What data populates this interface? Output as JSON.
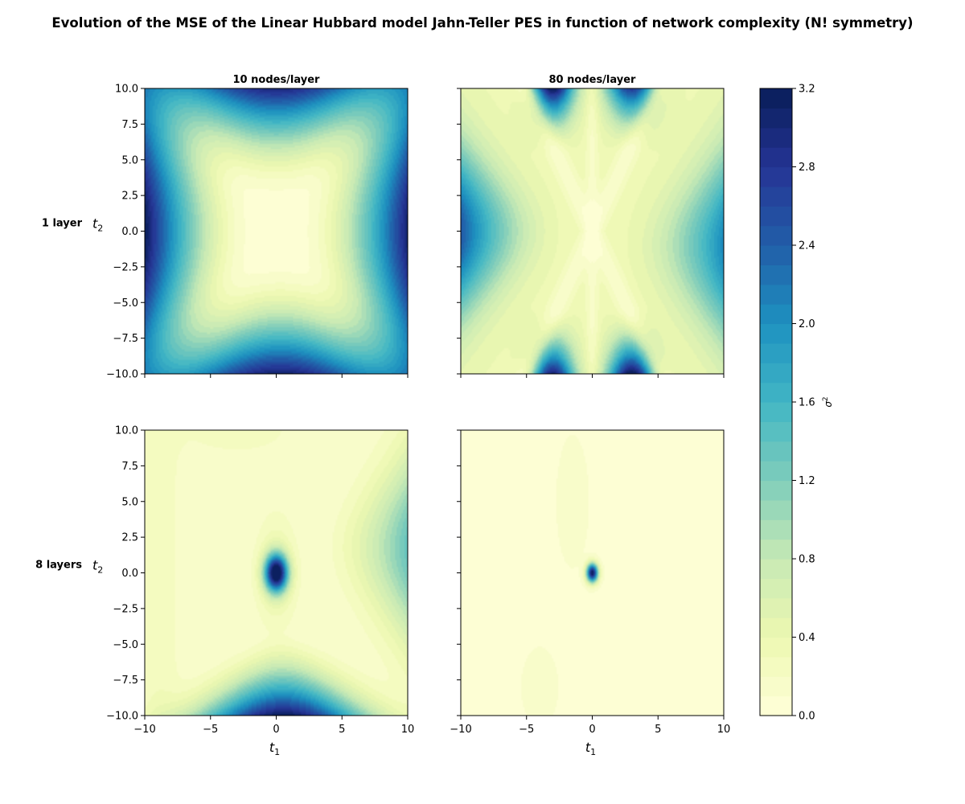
{
  "chart_data": {
    "type": "heatmap",
    "title": "Evolution of the MSE of the Linear Hubbard model Jahn-Teller PES in function of network complexity (N! symmetry)",
    "column_titles": [
      "10 nodes/layer",
      "80 nodes/layer"
    ],
    "row_labels": [
      "1 layer",
      "8 layers"
    ],
    "xlabel": "t",
    "xlabel_sub": "1",
    "ylabel": "t",
    "ylabel_sub": "2",
    "xlim": [
      -10,
      10
    ],
    "ylim": [
      -10,
      10
    ],
    "x_ticks": [
      -10,
      -5,
      0,
      5,
      10
    ],
    "x_tick_labels": [
      "−10",
      "−5",
      "0",
      "5",
      "10"
    ],
    "y_ticks": [
      -10,
      -7.5,
      -5,
      -2.5,
      0,
      2.5,
      5,
      7.5,
      10
    ],
    "y_tick_labels": [
      "−10.0",
      "−7.5",
      "−5.0",
      "−2.5",
      "0.0",
      "2.5",
      "5.0",
      "7.5",
      "10.0"
    ],
    "colorbar": {
      "label": "σ",
      "label_sup": "2",
      "min": 0,
      "max": 3.2,
      "levels": 32,
      "colormap": "YlGnBu",
      "ticks": [
        0,
        0.4,
        0.8,
        1.2,
        1.6,
        2.0,
        2.4,
        2.8,
        3.2
      ],
      "tick_labels": [
        "0.0",
        "0.4",
        "0.8",
        "1.2",
        "1.6",
        "2.0",
        "2.4",
        "2.8",
        "3.2"
      ]
    },
    "panels": [
      {
        "row": "1 layer",
        "column": "10 nodes/layer",
        "peaks": [
          {
            "t1": -10,
            "t2": 0,
            "value": 3.2
          },
          {
            "t1": 10,
            "t2": 0,
            "value": 3.0
          },
          {
            "t1": 0,
            "t2": 10,
            "value": 2.9
          },
          {
            "t1": 0.5,
            "t2": -10,
            "value": 3.0
          }
        ],
        "background": 0.1
      },
      {
        "row": "1 layer",
        "column": "80 nodes/layer",
        "peaks": [
          {
            "t1": -3,
            "t2": 10,
            "value": 3.1
          },
          {
            "t1": 3,
            "t2": 10,
            "value": 2.6
          },
          {
            "t1": -3,
            "t2": -10,
            "value": 2.9
          },
          {
            "t1": 3,
            "t2": -10,
            "value": 3.2
          },
          {
            "t1": -10,
            "t2": 0,
            "value": 2.4
          },
          {
            "t1": 10,
            "t2": -1,
            "value": 2.0
          }
        ],
        "background": 0.3
      },
      {
        "row": "8 layers",
        "column": "10 nodes/layer",
        "peaks": [
          {
            "t1": 0,
            "t2": 0,
            "value": 3.2
          },
          {
            "t1": 0.5,
            "t2": -10,
            "value": 3.1
          },
          {
            "t1": 10,
            "t2": 2,
            "value": 1.3
          }
        ],
        "background": 0.15
      },
      {
        "row": "8 layers",
        "column": "80 nodes/layer",
        "peaks": [
          {
            "t1": 0,
            "t2": 0,
            "value": 3.2
          }
        ],
        "background": 0.05
      }
    ]
  }
}
